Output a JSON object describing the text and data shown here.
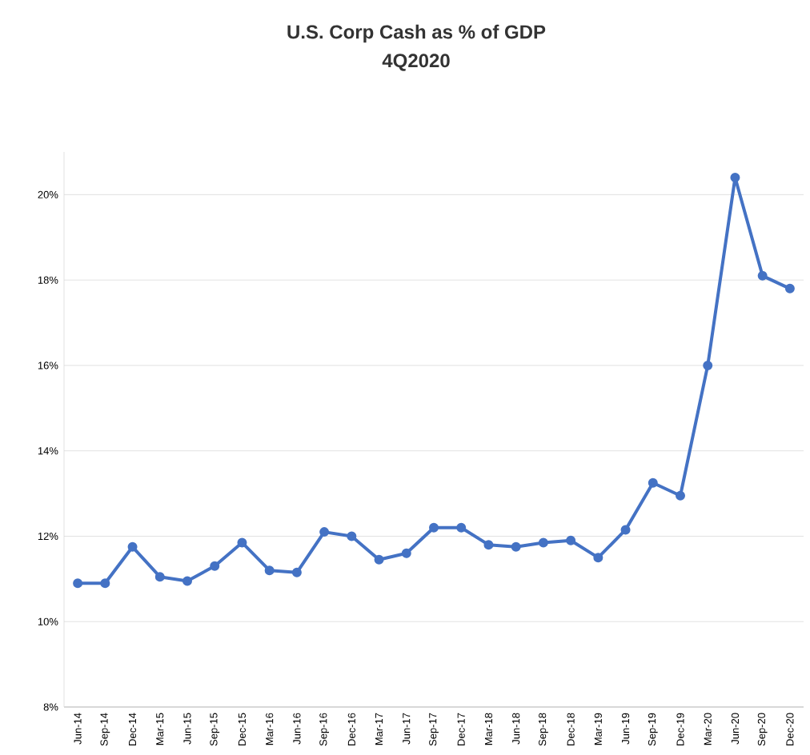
{
  "chart_data": {
    "type": "line",
    "title": "U.S. Corp Cash as % of GDP",
    "subtitle": "4Q2020",
    "categories": [
      "Jun-14",
      "Sep-14",
      "Dec-14",
      "Mar-15",
      "Jun-15",
      "Sep-15",
      "Dec-15",
      "Mar-16",
      "Jun-16",
      "Sep-16",
      "Dec-16",
      "Mar-17",
      "Jun-17",
      "Sep-17",
      "Dec-17",
      "Mar-18",
      "Jun-18",
      "Sep-18",
      "Dec-18",
      "Mar-19",
      "Jun-19",
      "Sep-19",
      "Dec-19",
      "Mar-20",
      "Jun-20",
      "Sep-20",
      "Dec-20"
    ],
    "series": [
      {
        "color": "#4472c4",
        "values": [
          10.9,
          10.9,
          11.75,
          11.05,
          10.95,
          11.3,
          11.85,
          11.2,
          11.15,
          12.1,
          12.0,
          11.45,
          11.6,
          12.2,
          12.2,
          11.8,
          11.75,
          11.85,
          11.9,
          11.5,
          12.15,
          13.25,
          12.95,
          16.0,
          20.4,
          18.1,
          17.8
        ]
      }
    ],
    "ylim": [
      8,
      21
    ],
    "yticks": [
      {
        "value": 8,
        "label": "8%"
      },
      {
        "value": 10,
        "label": "10%"
      },
      {
        "value": 12,
        "label": "12%"
      },
      {
        "value": 14,
        "label": "14%"
      },
      {
        "value": 16,
        "label": "16%"
      },
      {
        "value": 18,
        "label": "18%"
      },
      {
        "value": 20,
        "label": "20%"
      }
    ],
    "grid": "y",
    "marker": "circle",
    "line_style": "solid"
  }
}
